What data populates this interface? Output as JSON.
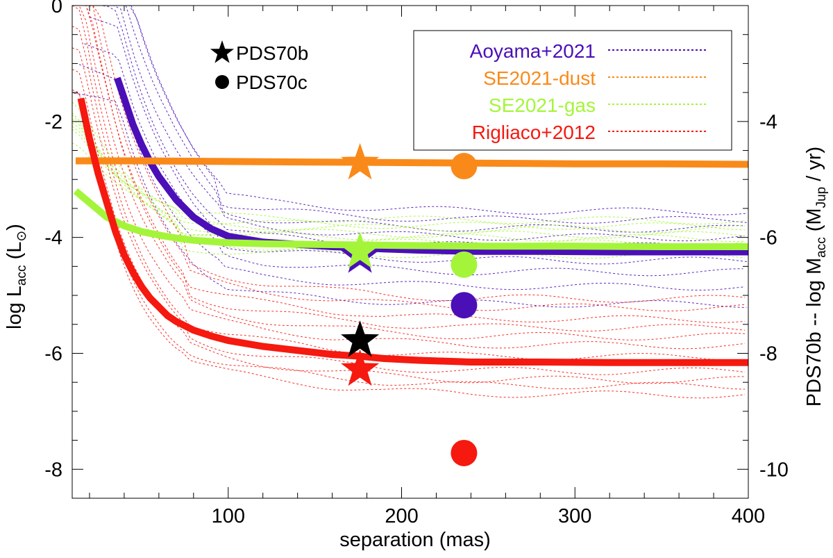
{
  "chart_data": {
    "type": "line",
    "xlabel": "separation (mas)",
    "ylabel_left": {
      "main": "log L",
      "sub": "acc",
      "unit_open": " (L",
      "unit_sym": "⊙",
      "unit_close": ")"
    },
    "ylabel_right": {
      "prefix": "PDS70b -- log M",
      "sub1": "acc",
      "mid": " (M",
      "sub2": "Jup",
      "suffix": " / yr)"
    },
    "xlim": [
      10,
      400
    ],
    "ylim": [
      -8.5,
      0
    ],
    "right_ylim": [
      -10.5,
      -2
    ],
    "xticks": [
      100,
      200,
      300,
      400
    ],
    "xtick_labels": [
      "100",
      "200",
      "300",
      "400"
    ],
    "yticks": [
      0,
      -2,
      -4,
      -6,
      -8
    ],
    "ytick_labels": [
      "0",
      "-2",
      "-4",
      "-6",
      "-8"
    ],
    "right_yticks": [
      -4,
      -6,
      -8,
      -10
    ],
    "right_ytick_labels": [
      "-4",
      "-6",
      "-8",
      "-10"
    ],
    "marker_legend": [
      {
        "symbol": "star",
        "label": "PDS70b"
      },
      {
        "symbol": "circle",
        "label": "PDS70c"
      }
    ],
    "legend_position": "top-right",
    "colors": {
      "aoyama": "#4b0fb8",
      "dust": "#f98a1a",
      "gas": "#a4f53a",
      "rigliaco": "#f5190f",
      "black": "#000000"
    },
    "series": [
      {
        "key": "aoyama",
        "name": "Aoyama+2021",
        "color": "#4b0fb8",
        "x": [
          36,
          40,
          45,
          50,
          55,
          60,
          70,
          80,
          90,
          100,
          120,
          140,
          160,
          176,
          190,
          210,
          240,
          280,
          320,
          360,
          400
        ],
        "y": [
          -1.25,
          -1.6,
          -2.05,
          -2.4,
          -2.7,
          -2.95,
          -3.35,
          -3.65,
          -3.85,
          -3.98,
          -4.08,
          -4.12,
          -4.16,
          -4.18,
          -4.2,
          -4.22,
          -4.24,
          -4.24,
          -4.25,
          -4.25,
          -4.25
        ],
        "pds70b": -4.33,
        "pds70c": -5.17
      },
      {
        "key": "dust",
        "name": "SE2021-dust",
        "color": "#f98a1a",
        "x": [
          12,
          50,
          100,
          150,
          200,
          250,
          300,
          350,
          400
        ],
        "y": [
          -2.68,
          -2.68,
          -2.69,
          -2.7,
          -2.71,
          -2.72,
          -2.73,
          -2.73,
          -2.74
        ],
        "pds70b": -2.72,
        "pds70c": -2.77
      },
      {
        "key": "gas",
        "name": "SE2021-gas",
        "color": "#a4f53a",
        "x": [
          12,
          20,
          30,
          40,
          50,
          60,
          70,
          80,
          90,
          100,
          120,
          150,
          176,
          200,
          250,
          300,
          350,
          400
        ],
        "y": [
          -3.2,
          -3.4,
          -3.65,
          -3.8,
          -3.9,
          -3.96,
          -4.01,
          -4.05,
          -4.07,
          -4.09,
          -4.11,
          -4.12,
          -4.13,
          -4.14,
          -4.15,
          -4.15,
          -4.16,
          -4.16
        ],
        "pds70b": -4.25,
        "pds70c": -4.47
      },
      {
        "key": "rigliaco",
        "name": "Rigliaco+2012",
        "color": "#f5190f",
        "x": [
          15,
          20,
          25,
          30,
          35,
          40,
          45,
          50,
          55,
          60,
          65,
          70,
          80,
          90,
          100,
          120,
          140,
          160,
          176,
          190,
          210,
          240,
          280,
          320,
          360,
          400
        ],
        "y": [
          -1.6,
          -2.3,
          -2.9,
          -3.4,
          -3.9,
          -4.3,
          -4.6,
          -4.85,
          -5.05,
          -5.2,
          -5.35,
          -5.45,
          -5.6,
          -5.7,
          -5.78,
          -5.88,
          -5.95,
          -6.02,
          -6.05,
          -6.09,
          -6.12,
          -6.15,
          -6.15,
          -6.16,
          -6.16,
          -6.16
        ],
        "pds70b": -6.28,
        "pds70c": -7.72
      },
      {
        "key": "black",
        "name": "PDS70b",
        "color": "#000000",
        "x": [],
        "y": [],
        "pds70b": -5.78,
        "pds70c": null
      }
    ],
    "marker_x": {
      "pds70b": 176,
      "pds70c": 236
    }
  }
}
